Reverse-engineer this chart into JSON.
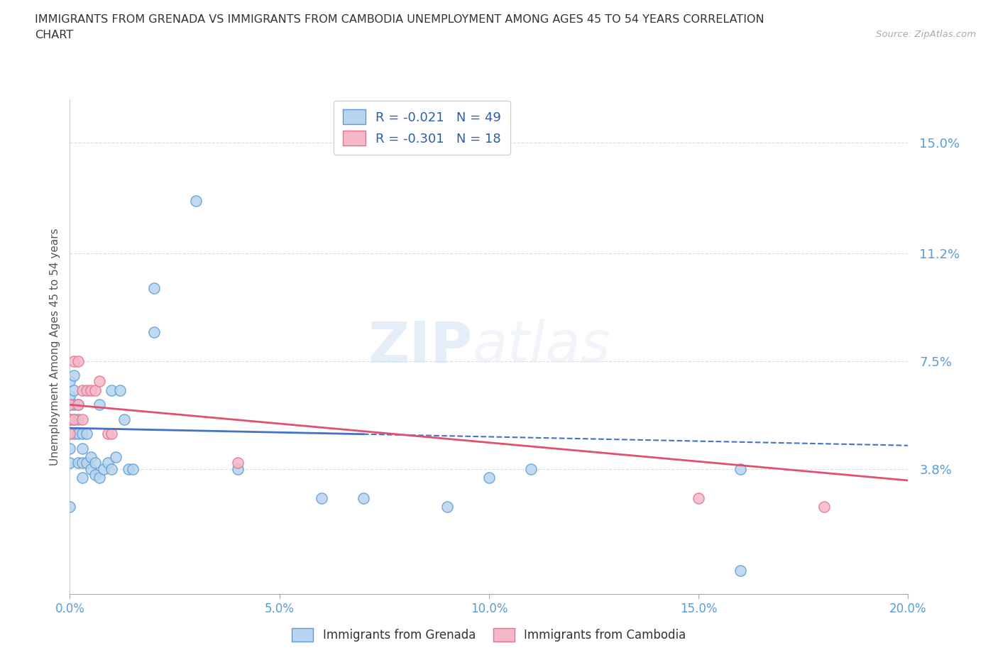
{
  "title_line1": "IMMIGRANTS FROM GRENADA VS IMMIGRANTS FROM CAMBODIA UNEMPLOYMENT AMONG AGES 45 TO 54 YEARS CORRELATION",
  "title_line2": "CHART",
  "source": "Source: ZipAtlas.com",
  "ylabel": "Unemployment Among Ages 45 to 54 years",
  "xlim": [
    0.0,
    0.2
  ],
  "ylim": [
    -0.005,
    0.165
  ],
  "yticks": [
    0.038,
    0.075,
    0.112,
    0.15
  ],
  "ytick_labels": [
    "3.8%",
    "7.5%",
    "11.2%",
    "15.0%"
  ],
  "xticks": [
    0.0,
    0.05,
    0.1,
    0.15,
    0.2
  ],
  "xtick_labels": [
    "0.0%",
    "5.0%",
    "10.0%",
    "15.0%",
    "20.0%"
  ],
  "grenada_color": "#b8d4ee",
  "cambodia_color": "#f4b8c8",
  "grenada_edge_color": "#5b9bd5",
  "cambodia_edge_color": "#e8708a",
  "grenada_line_color": "#4472c4",
  "cambodia_line_color": "#e05070",
  "grenada_r": -0.021,
  "grenada_n": 49,
  "cambodia_r": -0.301,
  "cambodia_n": 18,
  "legend_r_color": "#2e5fa3",
  "watermark_zip": "ZIP",
  "watermark_atlas": "atlas",
  "background_color": "#ffffff",
  "grid_color": "#c8d4e8",
  "axis_color": "#5b9bd5",
  "tick_color": "#888888",
  "grenada_x": [
    0.0,
    0.0,
    0.0,
    0.0,
    0.0,
    0.0,
    0.0,
    0.0,
    0.001,
    0.001,
    0.001,
    0.001,
    0.001,
    0.002,
    0.002,
    0.002,
    0.002,
    0.003,
    0.003,
    0.003,
    0.003,
    0.004,
    0.004,
    0.005,
    0.005,
    0.006,
    0.006,
    0.007,
    0.007,
    0.008,
    0.009,
    0.01,
    0.01,
    0.011,
    0.012,
    0.013,
    0.014,
    0.015,
    0.02,
    0.02,
    0.03,
    0.04,
    0.06,
    0.07,
    0.09,
    0.1,
    0.11,
    0.16,
    0.16
  ],
  "grenada_y": [
    0.025,
    0.04,
    0.045,
    0.05,
    0.055,
    0.06,
    0.063,
    0.068,
    0.05,
    0.055,
    0.06,
    0.065,
    0.07,
    0.04,
    0.05,
    0.055,
    0.06,
    0.035,
    0.04,
    0.045,
    0.05,
    0.04,
    0.05,
    0.038,
    0.042,
    0.036,
    0.04,
    0.035,
    0.06,
    0.038,
    0.04,
    0.038,
    0.065,
    0.042,
    0.065,
    0.055,
    0.038,
    0.038,
    0.085,
    0.1,
    0.13,
    0.038,
    0.028,
    0.028,
    0.025,
    0.035,
    0.038,
    0.038,
    0.003
  ],
  "cambodia_x": [
    0.0,
    0.0,
    0.0,
    0.001,
    0.001,
    0.002,
    0.002,
    0.003,
    0.003,
    0.004,
    0.005,
    0.006,
    0.007,
    0.009,
    0.01,
    0.04,
    0.15,
    0.18
  ],
  "cambodia_y": [
    0.05,
    0.055,
    0.06,
    0.055,
    0.075,
    0.06,
    0.075,
    0.055,
    0.065,
    0.065,
    0.065,
    0.065,
    0.068,
    0.05,
    0.05,
    0.04,
    0.028,
    0.025
  ],
  "grenada_trend_x": [
    0.0,
    0.2
  ],
  "grenada_trend_y": [
    0.052,
    0.046
  ],
  "cambodia_trend_x": [
    0.0,
    0.2
  ],
  "cambodia_trend_y": [
    0.06,
    0.034
  ]
}
